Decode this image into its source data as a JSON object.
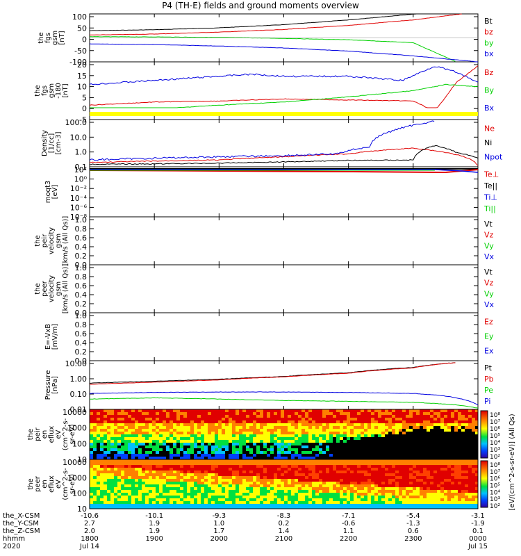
{
  "title": "P4 (TH-E) fields and ground moments overview",
  "colors": {
    "black": "#000000",
    "red": "#e00000",
    "green": "#00d000",
    "blue": "#0000e0",
    "yellow": "#ffff00"
  },
  "x_axis": {
    "time_range_min": [
      0,
      360
    ],
    "tick_minutes": [
      0,
      60,
      120,
      180,
      240,
      300,
      360
    ],
    "rows": [
      {
        "label": "the_X-CSM",
        "values": [
          "-10.6",
          "-10.1",
          "-9.3",
          "-8.3",
          "-7.1",
          "-5.4",
          "-3.1"
        ]
      },
      {
        "label": "the_Y-CSM",
        "values": [
          "2.7",
          "1.9",
          "1.0",
          "0.2",
          "-0.6",
          "-1.3",
          "-1.9"
        ]
      },
      {
        "label": "the_Z-CSM",
        "values": [
          "2.0",
          "1.9",
          "1.7",
          "1.4",
          "1.1",
          "0.6",
          "0.1"
        ]
      },
      {
        "label": "hhmm",
        "values": [
          "1800",
          "1900",
          "2000",
          "2100",
          "2200",
          "2300",
          "0000"
        ]
      },
      {
        "label": "2020",
        "values": [
          "Jul 14",
          "",
          "",
          "",
          "",
          "",
          "Jul 15"
        ]
      }
    ]
  },
  "panels": [
    {
      "id": "fgs-gsm",
      "ylabel": [
        "the",
        "fgs",
        "gsm",
        "[nT]"
      ],
      "yticks": [
        "100",
        "50",
        "0",
        "-50",
        "-100"
      ],
      "ylim": [
        -100,
        100
      ],
      "legend": [
        {
          "text": "Bt",
          "color": "#000000"
        },
        {
          "text": "bz",
          "color": "#e00000"
        },
        {
          "text": "by",
          "color": "#00d000"
        },
        {
          "text": "bx",
          "color": "#0000e0"
        }
      ]
    },
    {
      "id": "fgs-gsm-dsl",
      "ylabel": [
        "the",
        "fgs",
        "gsm",
        "-180",
        "[nT]"
      ],
      "yticks": [
        "20",
        "15",
        "10",
        "5",
        "0",
        "-5"
      ],
      "ylim": [
        -8,
        20
      ],
      "legend": [
        {
          "text": "Bz",
          "color": "#e00000"
        },
        {
          "text": "By",
          "color": "#00d000"
        },
        {
          "text": "Bx",
          "color": "#0000e0"
        }
      ]
    },
    {
      "id": "density",
      "ylabel": [
        "Density",
        "[1/cc]",
        "[cm-3]"
      ],
      "yticks": [
        "100.0",
        "10.0",
        "1.0",
        "0.1"
      ],
      "ylim_log": [
        0.1,
        200
      ],
      "legend": [
        {
          "text": "Ne",
          "color": "#e00000"
        },
        {
          "text": "Ni",
          "color": "#000000"
        },
        {
          "text": "Npot",
          "color": "#0000e0"
        }
      ]
    },
    {
      "id": "temperature",
      "ylabel": [
        "moqt3",
        "[eV]"
      ],
      "yticks": [
        "10²",
        "10⁰",
        "10⁻²",
        "10⁻⁴",
        "10⁻⁶",
        "10⁻⁸"
      ],
      "legend": [
        {
          "text": "Te⊥",
          "color": "#e00000"
        },
        {
          "text": "Te||",
          "color": "#000000"
        },
        {
          "text": "Ti⊥",
          "color": "#0000e0"
        },
        {
          "text": "Ti||",
          "color": "#00d000"
        }
      ]
    },
    {
      "id": "peir-velocity",
      "ylabel": [
        "the",
        "peir",
        "velocity",
        "gsm",
        "[km/s (All Qs)]"
      ],
      "yticks": [
        "1.0",
        "0.8",
        "0.6",
        "0.4",
        "0.2",
        "0.0"
      ],
      "legend": [
        {
          "text": "Vt",
          "color": "#000000"
        },
        {
          "text": "Vz",
          "color": "#e00000"
        },
        {
          "text": "Vy",
          "color": "#00d000"
        },
        {
          "text": "Vx",
          "color": "#0000e0"
        }
      ]
    },
    {
      "id": "peer-velocity",
      "ylabel": [
        "the",
        "peer",
        "velocity",
        "gsm",
        "[km/s (All Qs)]"
      ],
      "yticks": [
        "1.0",
        "0.8",
        "0.6",
        "0.4",
        "0.2",
        "0.0"
      ],
      "legend": [
        {
          "text": "Vt",
          "color": "#000000"
        },
        {
          "text": "Vz",
          "color": "#e00000"
        },
        {
          "text": "Vy",
          "color": "#00d000"
        },
        {
          "text": "Vx",
          "color": "#0000e0"
        }
      ]
    },
    {
      "id": "efield",
      "ylabel": [
        "E=-VxB",
        "[mV/m]"
      ],
      "yticks": [
        "1.0",
        "0.8",
        "0.6",
        "0.4",
        "0.2",
        "0.0"
      ],
      "legend": [
        {
          "text": "Ez",
          "color": "#e00000"
        },
        {
          "text": "Ey",
          "color": "#00d000"
        },
        {
          "text": "Ex",
          "color": "#0000e0"
        }
      ]
    },
    {
      "id": "pressure",
      "ylabel": [
        "Pressure",
        "[nPa]"
      ],
      "yticks": [
        "10.00",
        "1.00",
        "0.10",
        "0.01"
      ],
      "ylim_log": [
        0.01,
        20
      ],
      "legend": [
        {
          "text": "Pt",
          "color": "#000000"
        },
        {
          "text": "Pb",
          "color": "#e00000"
        },
        {
          "text": "Pe",
          "color": "#00d000"
        },
        {
          "text": "Pi",
          "color": "#0000e0"
        }
      ]
    },
    {
      "id": "peir-spectrogram",
      "ylabel": [
        "the",
        "peir",
        "en",
        "eflux",
        "eV",
        "(cm^2-s-",
        "sr-eV)"
      ],
      "yticks": [
        "10000",
        "1000",
        "100",
        "10"
      ],
      "colorbar_ticks": [
        "10⁸",
        "10⁷",
        "10⁶",
        "10⁵",
        "10⁴",
        "10³",
        "10²"
      ]
    },
    {
      "id": "peer-spectrogram",
      "ylabel": [
        "the",
        "peer",
        "en",
        "eflux",
        "eV",
        "(cm^2-s-",
        "sr-eV)"
      ],
      "yticks": [
        "10000",
        "1000",
        "100",
        "10"
      ],
      "colorbar_ticks": [
        "10⁸",
        "10⁷",
        "10⁶",
        "10⁵",
        "10⁴",
        "10³",
        "10²"
      ]
    }
  ],
  "colorbar_label": "[eV/(cm^2-s-sr-eV)] (All Qs)",
  "chart_data": [
    {
      "type": "line",
      "panel": "fgs-gsm",
      "x_unit": "minutes after 1800 UT",
      "series": [
        {
          "name": "Bt",
          "x": [
            0,
            60,
            120,
            180,
            240,
            290,
            330
          ],
          "y": [
            30,
            34,
            42,
            55,
            75,
            95,
            110
          ]
        },
        {
          "name": "bz",
          "x": [
            0,
            60,
            120,
            180,
            240,
            300,
            345
          ],
          "y": [
            12,
            16,
            24,
            35,
            52,
            75,
            100
          ]
        },
        {
          "name": "by",
          "x": [
            0,
            60,
            120,
            180,
            240,
            300,
            340
          ],
          "y": [
            5,
            4,
            2,
            -2,
            -8,
            -20,
            -100
          ]
        },
        {
          "name": "bx",
          "x": [
            0,
            60,
            120,
            180,
            240,
            300,
            360
          ],
          "y": [
            -25,
            -28,
            -34,
            -42,
            -55,
            -75,
            -100
          ]
        }
      ]
    },
    {
      "type": "line",
      "panel": "fgs-gsm-dsl",
      "x_unit": "minutes after 1800 UT",
      "series": [
        {
          "name": "Bz",
          "x": [
            0,
            60,
            120,
            180,
            240,
            300,
            320,
            340,
            360
          ],
          "y": [
            -1,
            0.5,
            1,
            2,
            1.5,
            1,
            -4,
            10,
            18
          ]
        },
        {
          "name": "By",
          "x": [
            0,
            20,
            60,
            120,
            180,
            240,
            300,
            330,
            360
          ],
          "y": [
            -3,
            -5,
            -3,
            -1,
            0.5,
            3,
            6,
            9,
            8
          ]
        },
        {
          "name": "Bx",
          "x": [
            0,
            60,
            120,
            150,
            180,
            240,
            290,
            320,
            340,
            360
          ],
          "y": [
            9,
            11,
            13,
            14,
            13,
            13,
            11,
            18,
            15,
            10
          ]
        }
      ]
    },
    {
      "type": "line",
      "panel": "density",
      "x_unit": "minutes after 1800 UT",
      "y_scale": "log",
      "series": [
        {
          "name": "Ne",
          "x": [
            0,
            60,
            120,
            180,
            240,
            300,
            330,
            360
          ],
          "y": [
            0.2,
            0.25,
            0.3,
            0.5,
            0.8,
            2.0,
            1.0,
            0.12
          ]
        },
        {
          "name": "Ni",
          "x": [
            0,
            60,
            120,
            180,
            240,
            300,
            320,
            340,
            360
          ],
          "y": [
            0.15,
            0.16,
            0.18,
            0.22,
            0.28,
            0.3,
            3.0,
            1.0,
            0.4
          ]
        },
        {
          "name": "Npot",
          "x": [
            0,
            60,
            120,
            180,
            230,
            260,
            280,
            300,
            320
          ],
          "y": [
            0.3,
            0.4,
            0.5,
            0.6,
            0.8,
            2.5,
            30,
            80,
            150
          ]
        }
      ]
    },
    {
      "type": "line",
      "panel": "pressure",
      "x_unit": "minutes after 1800 UT",
      "y_scale": "log",
      "series": [
        {
          "name": "Pt",
          "x": [
            0,
            60,
            120,
            180,
            240,
            300,
            340
          ],
          "y": [
            0.6,
            0.8,
            1.1,
            1.7,
            3.0,
            7.0,
            15
          ]
        },
        {
          "name": "Pb",
          "x": [
            0,
            60,
            120,
            180,
            240,
            300,
            340
          ],
          "y": [
            0.5,
            0.7,
            1.0,
            1.6,
            2.8,
            6.5,
            15
          ]
        },
        {
          "name": "Pe",
          "x": [
            0,
            60,
            120,
            180,
            240,
            300,
            340,
            360
          ],
          "y": [
            0.05,
            0.06,
            0.05,
            0.04,
            0.035,
            0.03,
            0.02,
            0.012
          ]
        },
        {
          "name": "Pi",
          "x": [
            0,
            60,
            120,
            180,
            240,
            300,
            330,
            360
          ],
          "y": [
            0.12,
            0.14,
            0.15,
            0.15,
            0.14,
            0.12,
            0.08,
            0.02
          ]
        }
      ]
    }
  ]
}
